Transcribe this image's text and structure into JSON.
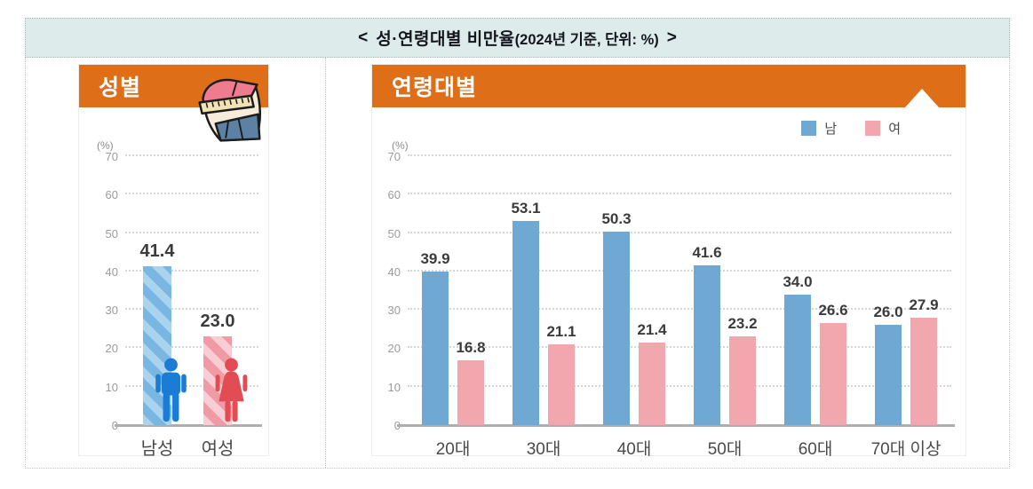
{
  "title": {
    "bracket_open": "<",
    "main": "성·연령대별 비만율",
    "paren": "(2024년 기준, 단위: %)",
    "bracket_close": ">"
  },
  "gender_panel": {
    "header": "성별",
    "unit_label": "(%)",
    "icon": "waist-measuring-tape-icon"
  },
  "age_panel": {
    "header": "연령대별",
    "unit_label": "(%)",
    "legend": [
      {
        "label": "남",
        "color": "#6fa9d3"
      },
      {
        "label": "여",
        "color": "#f2a6ae"
      }
    ]
  },
  "chart_data": [
    {
      "type": "bar",
      "title": "성별",
      "categories": [
        "남성",
        "여성"
      ],
      "values": [
        41.4,
        23.0
      ],
      "bar_styles": [
        "striped-blue",
        "striped-pink"
      ],
      "figures": [
        "male-figure-icon",
        "female-figure-icon"
      ],
      "ylabel": "(%)",
      "ylim": [
        0,
        70
      ],
      "yticks": [
        0,
        10,
        20,
        30,
        40,
        50,
        60,
        70
      ],
      "grid": "dotted horizontal"
    },
    {
      "type": "bar",
      "title": "연령대별",
      "categories": [
        "20대",
        "30대",
        "40대",
        "50대",
        "60대",
        "70대 이상"
      ],
      "series": [
        {
          "name": "남",
          "color": "#6fa9d3",
          "values": [
            39.9,
            53.1,
            50.3,
            41.6,
            34.0,
            26.0
          ]
        },
        {
          "name": "여",
          "color": "#f2a6ae",
          "values": [
            16.8,
            21.1,
            21.4,
            23.2,
            26.6,
            27.9
          ]
        }
      ],
      "ylabel": "(%)",
      "ylim": [
        0,
        70
      ],
      "yticks": [
        0,
        10,
        20,
        30,
        40,
        50,
        60,
        70
      ],
      "legend_position": "top-right",
      "grid": "dotted horizontal"
    }
  ],
  "colors": {
    "title_band_bg": "#ddecea",
    "panel_header_orange": "#de6f18",
    "male_bar": "#6fa9d3",
    "female_bar": "#f2a6ae",
    "male_stripe_light": "#aad3ee",
    "male_stripe_dark": "#79b7e2",
    "female_stripe_light": "#f9cdd4",
    "female_stripe_dark": "#f09aa5",
    "male_figure": "#1b7cd6",
    "female_figure": "#e24c55",
    "value_label": "#3b3b3b",
    "axis_label": "#9b9b9b",
    "baseline": "#aeaeae"
  }
}
